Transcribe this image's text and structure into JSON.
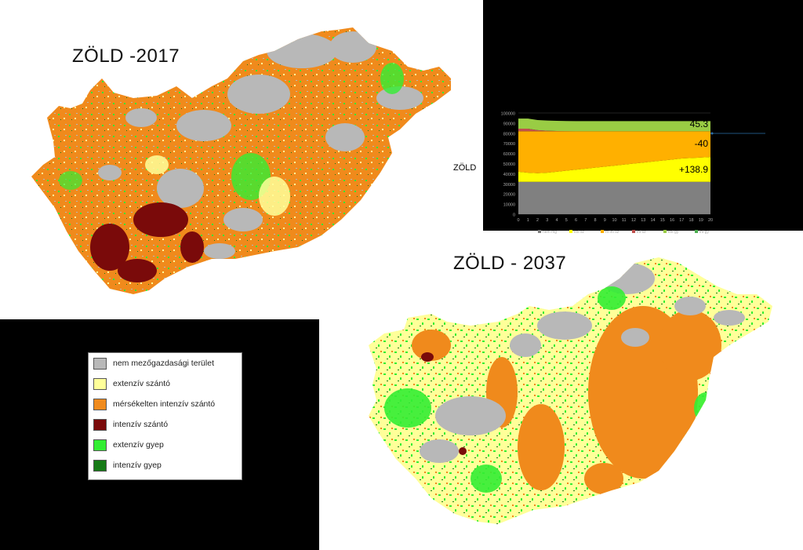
{
  "titles": {
    "map_2017": "ZÖLD -2017",
    "map_2037": "ZÖLD - 2037",
    "chart_side_label": "ZÖLD"
  },
  "colors": {
    "non_agri": "#b8b8b8",
    "ext_szanto": "#ffff99",
    "mint_szanto": "#f08a1c",
    "int_szanto": "#7a0a0a",
    "ext_gyep": "#33ee33",
    "int_gyep": "#157a15"
  },
  "legend": {
    "items": [
      {
        "label": "nem mezőgazdasági terület",
        "color": "#b8b8b8"
      },
      {
        "label": "extenzív szántó",
        "color": "#ffff99"
      },
      {
        "label": "mérsékelten intenzív szántó",
        "color": "#f08a1c"
      },
      {
        "label": "intenzív szántó",
        "color": "#7a0a0a"
      },
      {
        "label": "extenzív gyep",
        "color": "#33ee33"
      },
      {
        "label": "intenzív gyep",
        "color": "#157a15"
      }
    ]
  },
  "chart_data": {
    "type": "area",
    "x": [
      0,
      1,
      2,
      3,
      4,
      5,
      6,
      7,
      8,
      9,
      10,
      11,
      12,
      13,
      14,
      15,
      16,
      17,
      18,
      19,
      20
    ],
    "ylim": [
      0,
      100000
    ],
    "yticks": [
      "100000",
      "90000",
      "80000",
      "70000",
      "60000",
      "50000",
      "40000",
      "30000",
      "20000",
      "10000",
      "0"
    ],
    "legend_entries": [
      "nem mg",
      "ext sz",
      "m int sz",
      "int sz",
      "ext gy",
      "int gy"
    ],
    "series": [
      {
        "name": "nem mg",
        "color": "#808080",
        "values": [
          32000,
          32000,
          32000,
          32000,
          32000,
          32000,
          32000,
          32000,
          32000,
          32000,
          32000,
          32000,
          32000,
          32000,
          32000,
          32000,
          32000,
          32000,
          32000,
          32000,
          32000
        ]
      },
      {
        "name": "ext sz",
        "color": "#ffff00",
        "values": [
          10000,
          9000,
          8500,
          9000,
          10000,
          11000,
          12000,
          13000,
          14000,
          15000,
          16000,
          17000,
          18000,
          19000,
          20000,
          21000,
          22000,
          23000,
          23500,
          24000,
          24500
        ]
      },
      {
        "name": "m int sz",
        "color": "#ffb000",
        "values": [
          40000,
          41000,
          41500,
          41000,
          40000,
          39000,
          38000,
          37000,
          36000,
          35000,
          34000,
          33000,
          32000,
          31000,
          30000,
          29000,
          28000,
          27000,
          26500,
          26000,
          25500
        ]
      },
      {
        "name": "int sz",
        "color": "#c0504d",
        "values": [
          2500,
          2500,
          1000,
          500,
          200,
          100,
          0,
          0,
          0,
          0,
          0,
          0,
          0,
          0,
          0,
          0,
          0,
          0,
          0,
          0,
          0
        ]
      },
      {
        "name": "ext gy",
        "color": "#99cc44",
        "values": [
          10000,
          10000,
          10000,
          10000,
          10000,
          10000,
          10000,
          10000,
          10000,
          10000,
          10000,
          10000,
          10000,
          10000,
          10000,
          10000,
          10000,
          10000,
          10000,
          10000,
          10000
        ]
      },
      {
        "name": "int gy",
        "color": "#4caf50",
        "values": [
          0,
          0,
          0,
          0,
          0,
          0,
          0,
          0,
          0,
          0,
          0,
          0,
          0,
          0,
          0,
          0,
          0,
          0,
          0,
          0,
          0
        ]
      }
    ],
    "annotations": [
      "45.3",
      "-40",
      "+138.9"
    ]
  }
}
